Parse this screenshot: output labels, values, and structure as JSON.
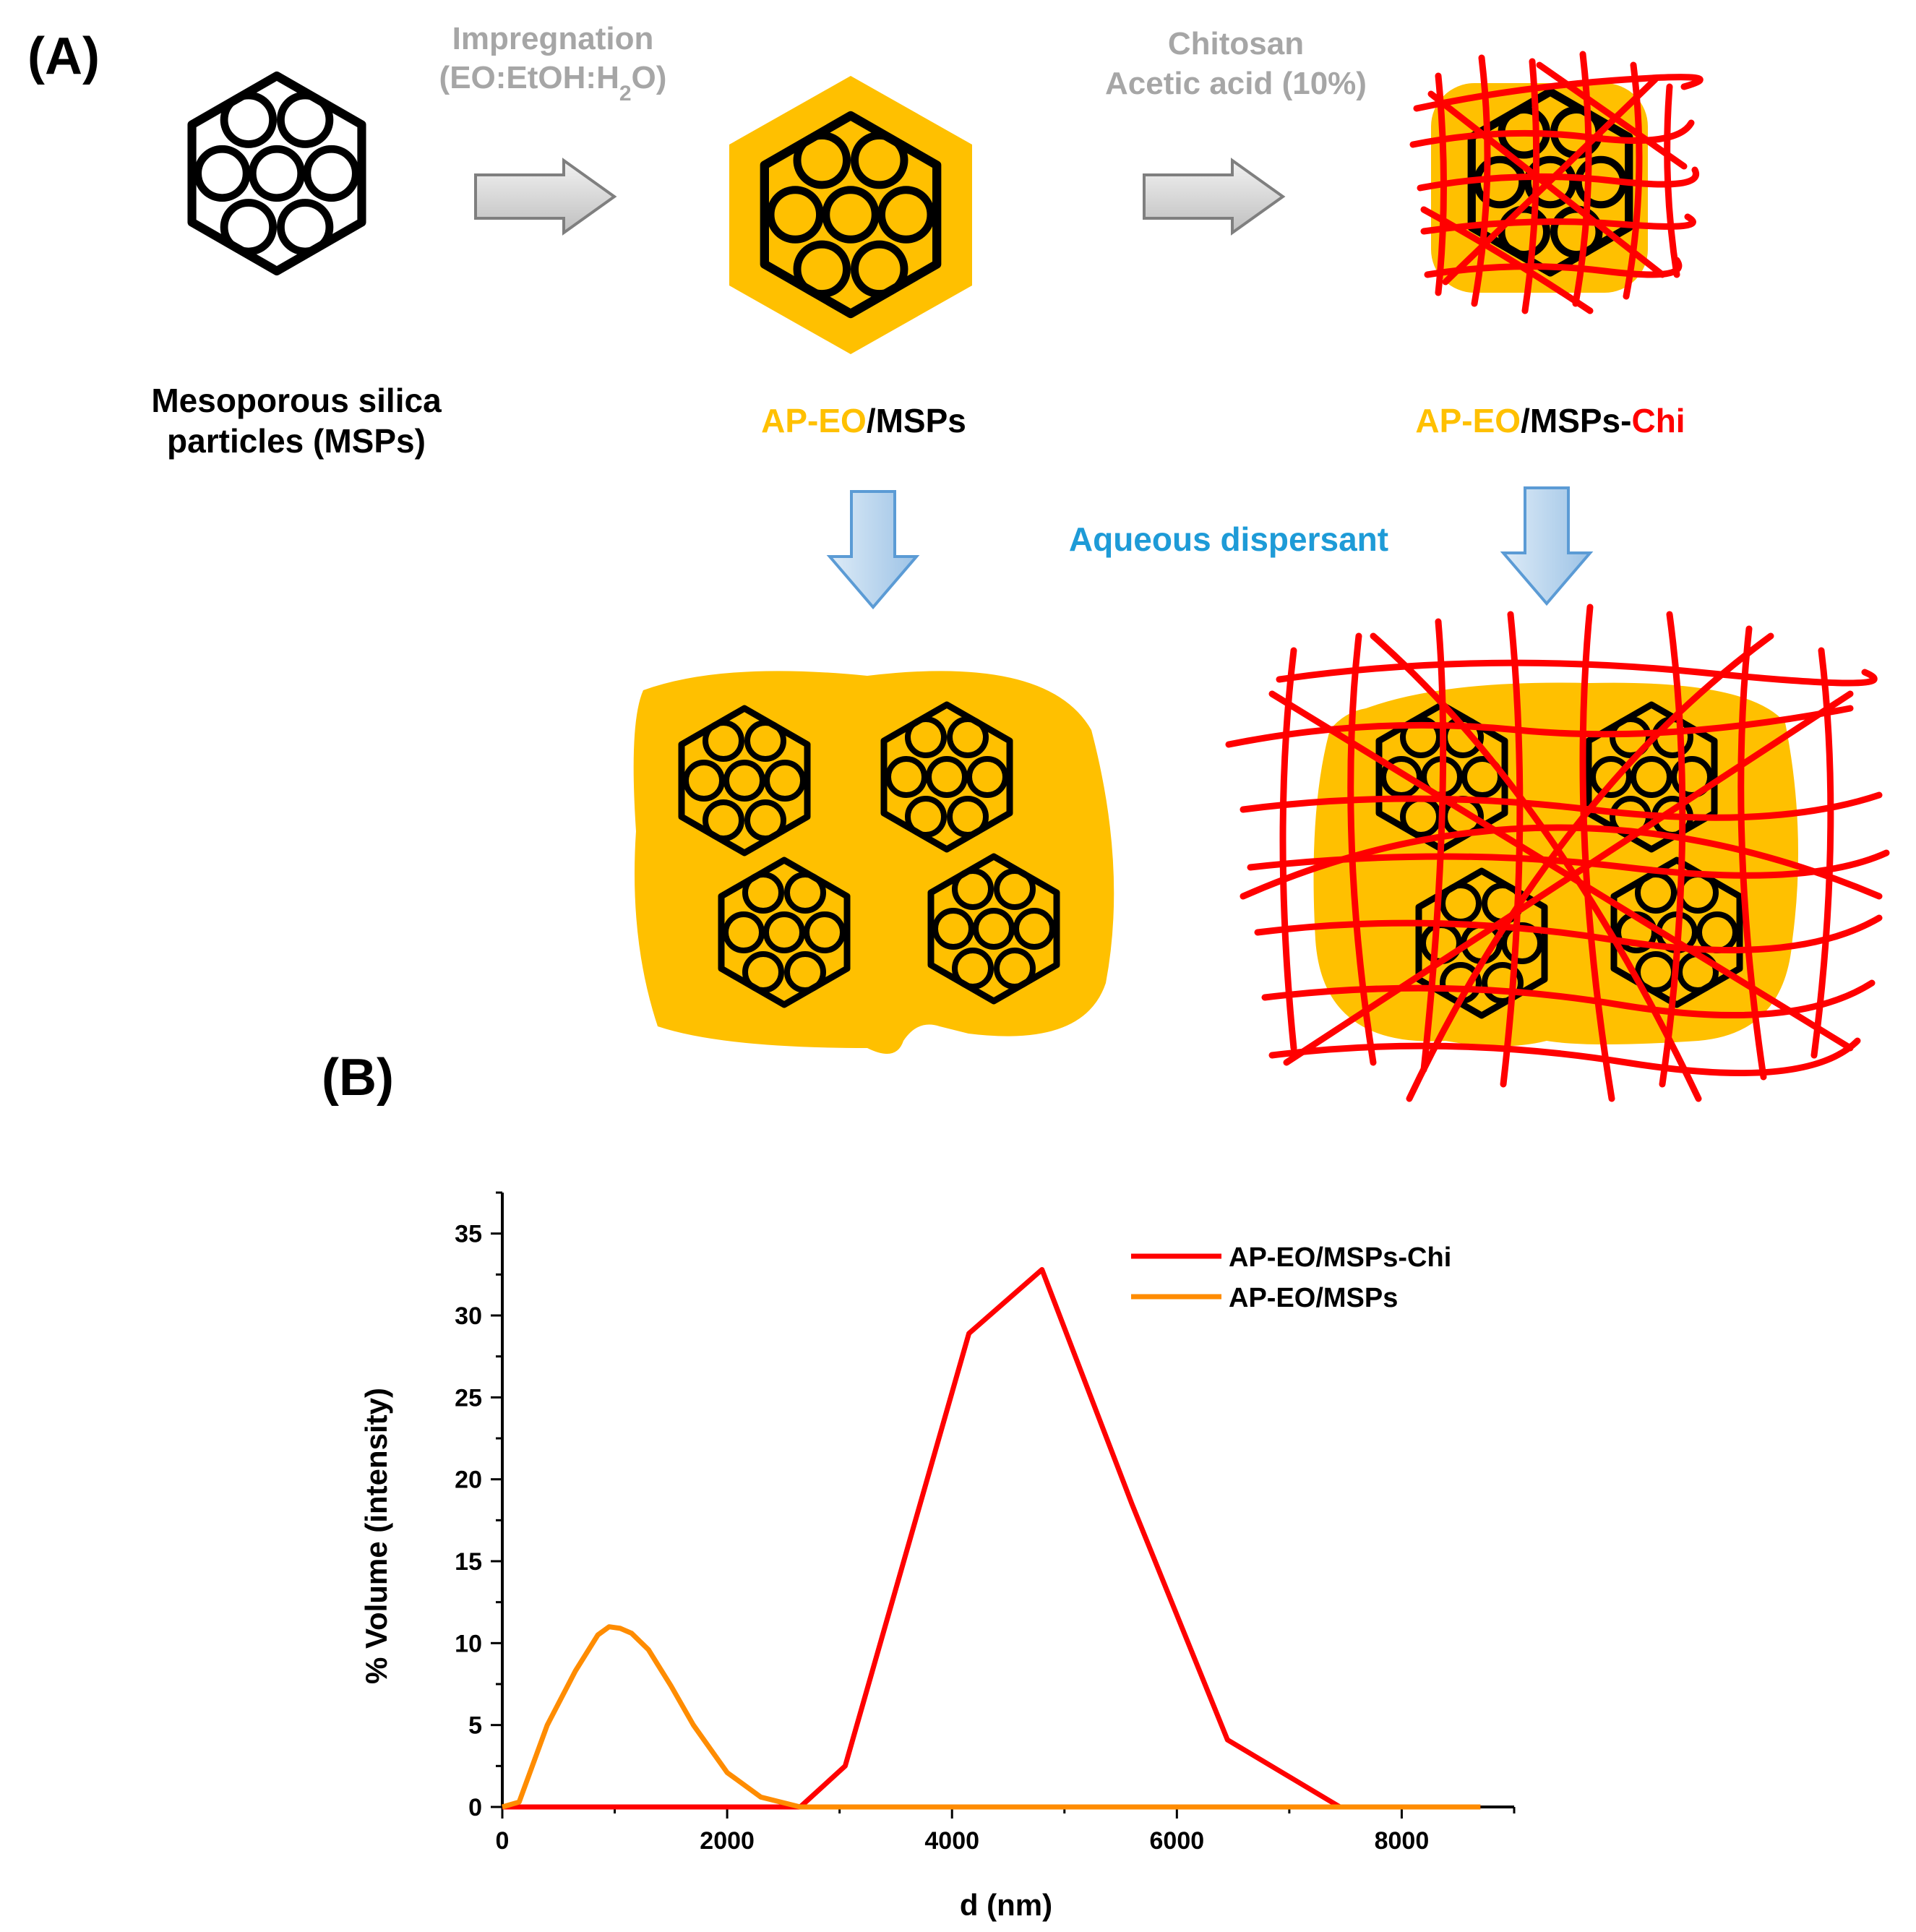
{
  "panel_a": {
    "label": "(A)",
    "step1": {
      "line1": "Impregnation",
      "line2": "(EO:EtOH:H",
      "sub": "2",
      "line2_end": "O)"
    },
    "step2": {
      "line1": "Chitosan",
      "line2": "Acetic acid (10%)"
    },
    "mats": {
      "line1": "Mesoporous silica",
      "line2": "particles (MSPs)"
    },
    "apeo": {
      "part1": "AP-EO",
      "part2": "/MSPs"
    },
    "apeochi": {
      "part1": "AP-EO",
      "part2": "/MSPs-",
      "part3": "Chi"
    },
    "dispersant": "Aqueous dispersant"
  },
  "panel_b_label": "(B)",
  "colors": {
    "gold": "#FFC000",
    "red": "#FF0000",
    "orange": "#FF8C00",
    "blue_text": "#1E9BD7",
    "grey_text": "#A6A6A6",
    "arrow_grey": "#D9D9D9",
    "arrow_blue": "#BDD7EE"
  },
  "chart_data": {
    "type": "line",
    "title": "",
    "xlabel": "d (nm)",
    "ylabel": "% Volume (intensity)",
    "xlim": [
      0,
      9000
    ],
    "ylim": [
      0,
      37.5
    ],
    "xticks": [
      0,
      2000,
      4000,
      6000,
      8000
    ],
    "yticks": [
      0,
      5,
      10,
      15,
      20,
      25,
      30,
      35
    ],
    "legend_position": "top-right",
    "series": [
      {
        "name": "AP-EO/MSPs-Chi",
        "color": "#FF0000",
        "x": [
          0,
          2650,
          3050,
          4150,
          4800,
          5600,
          6450,
          7450,
          8700
        ],
        "y": [
          0,
          0,
          2.5,
          28.9,
          32.8,
          18.5,
          4.1,
          0,
          0
        ]
      },
      {
        "name": "AP-EO/MSPs",
        "color": "#FF8C00",
        "x": [
          0,
          150,
          400,
          650,
          850,
          950,
          1050,
          1150,
          1300,
          1500,
          1700,
          2000,
          2300,
          2650,
          8700
        ],
        "y": [
          0,
          0.3,
          5.0,
          8.3,
          10.5,
          11.0,
          10.9,
          10.6,
          9.6,
          7.4,
          5.0,
          2.1,
          0.6,
          0,
          0
        ]
      }
    ]
  }
}
